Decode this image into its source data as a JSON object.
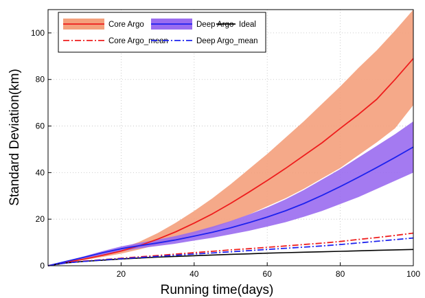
{
  "chart_data": {
    "type": "line",
    "title": "",
    "xlabel": "Running time(days)",
    "ylabel": "Standard Deviation(km)",
    "xlim": [
      0,
      100
    ],
    "ylim": [
      0,
      110
    ],
    "xticks": [
      "20",
      "40",
      "60",
      "80",
      "100"
    ],
    "yticks": [
      "0",
      "20",
      "40",
      "60",
      "80",
      "100"
    ],
    "grid": true,
    "legend_position": "top-left",
    "x": [
      0,
      5,
      10,
      15,
      20,
      25,
      30,
      35,
      40,
      45,
      50,
      55,
      60,
      65,
      70,
      75,
      80,
      85,
      90,
      95,
      100
    ],
    "bands": [
      {
        "name": "Core Argo",
        "color": "#f4a07c",
        "lower": [
          0,
          1.3,
          2.5,
          3.8,
          5.2,
          7,
          9,
          11,
          13.5,
          16,
          19,
          22,
          25.5,
          29,
          33,
          37.5,
          42,
          47.5,
          53,
          59,
          69
        ],
        "upper": [
          0,
          1.7,
          3.3,
          5.2,
          7.5,
          10.3,
          14,
          18.5,
          23.5,
          29,
          35,
          41.5,
          48,
          55,
          62,
          69.5,
          77,
          85,
          92.5,
          101,
          110
        ]
      },
      {
        "name": "Deep Argo",
        "color": "#9a6cf0",
        "lower": [
          0,
          1.7,
          3.2,
          4.8,
          6.2,
          7.5,
          8.5,
          9.5,
          10.8,
          12,
          13.5,
          15,
          16.8,
          18.7,
          21,
          23.5,
          26.5,
          29.5,
          33,
          36.5,
          40
        ],
        "upper": [
          0,
          2.1,
          4.1,
          6.3,
          8.3,
          9.8,
          11.2,
          12.8,
          14.7,
          16.8,
          19.2,
          22,
          25,
          28.5,
          32.5,
          37,
          41.5,
          46.5,
          51.5,
          56.5,
          62
        ]
      }
    ],
    "series": [
      {
        "name": "Core Argo",
        "color": "#ee1d1d",
        "style": "solid",
        "values": [
          0,
          1.5,
          2.9,
          4.5,
          6.3,
          8.6,
          11.4,
          14.6,
          18.3,
          22.3,
          26.8,
          31.6,
          36.6,
          41.8,
          47.3,
          52.8,
          59,
          65,
          71.5,
          80,
          89
        ]
      },
      {
        "name": "Deep Argo",
        "color": "#1d22ee",
        "style": "solid",
        "values": [
          0,
          1.9,
          3.7,
          5.6,
          7.3,
          8.6,
          9.8,
          11.1,
          12.7,
          14.4,
          16.3,
          18.5,
          20.9,
          23.6,
          26.7,
          30.2,
          34,
          38,
          42.2,
          46.5,
          51
        ]
      },
      {
        "name": "Ideal",
        "color": "#000000",
        "style": "solid",
        "values": [
          0,
          1.2,
          1.9,
          2.4,
          2.9,
          3.3,
          3.7,
          4,
          4.3,
          4.6,
          4.9,
          5.1,
          5.4,
          5.6,
          5.8,
          6,
          6.2,
          6.4,
          6.6,
          6.8,
          7
        ]
      },
      {
        "name": "Core Argo_mean",
        "color": "#ee1d1d",
        "style": "dashdot",
        "values": [
          0,
          1.2,
          2,
          2.6,
          3.2,
          3.8,
          4.4,
          5,
          5.6,
          6.2,
          6.8,
          7.3,
          7.9,
          8.5,
          9.1,
          9.7,
          10.4,
          11.3,
          12.1,
          13,
          14
        ]
      },
      {
        "name": "Deep Argo_mean",
        "color": "#1d22ee",
        "style": "dashdot",
        "values": [
          0,
          1.2,
          1.9,
          2.5,
          3,
          3.5,
          4,
          4.5,
          5,
          5.5,
          6,
          6.5,
          7,
          7.5,
          8,
          8.5,
          9.1,
          9.8,
          10.5,
          11.2,
          11.9
        ]
      }
    ],
    "legend": [
      {
        "label": "Core Argo",
        "kind": "band",
        "color": "#f4a07c",
        "line_color": "#ee1d1d"
      },
      {
        "label": "Deep Argo",
        "kind": "band",
        "color": "#9a6cf0",
        "line_color": "#1d22ee"
      },
      {
        "label": "Ideal",
        "kind": "line",
        "line_color": "#000000"
      },
      {
        "label": "Core Argo_mean",
        "kind": "dashdot",
        "line_color": "#ee1d1d"
      },
      {
        "label": "Deep Argo_mean",
        "kind": "dashdot",
        "line_color": "#1d22ee"
      }
    ]
  }
}
